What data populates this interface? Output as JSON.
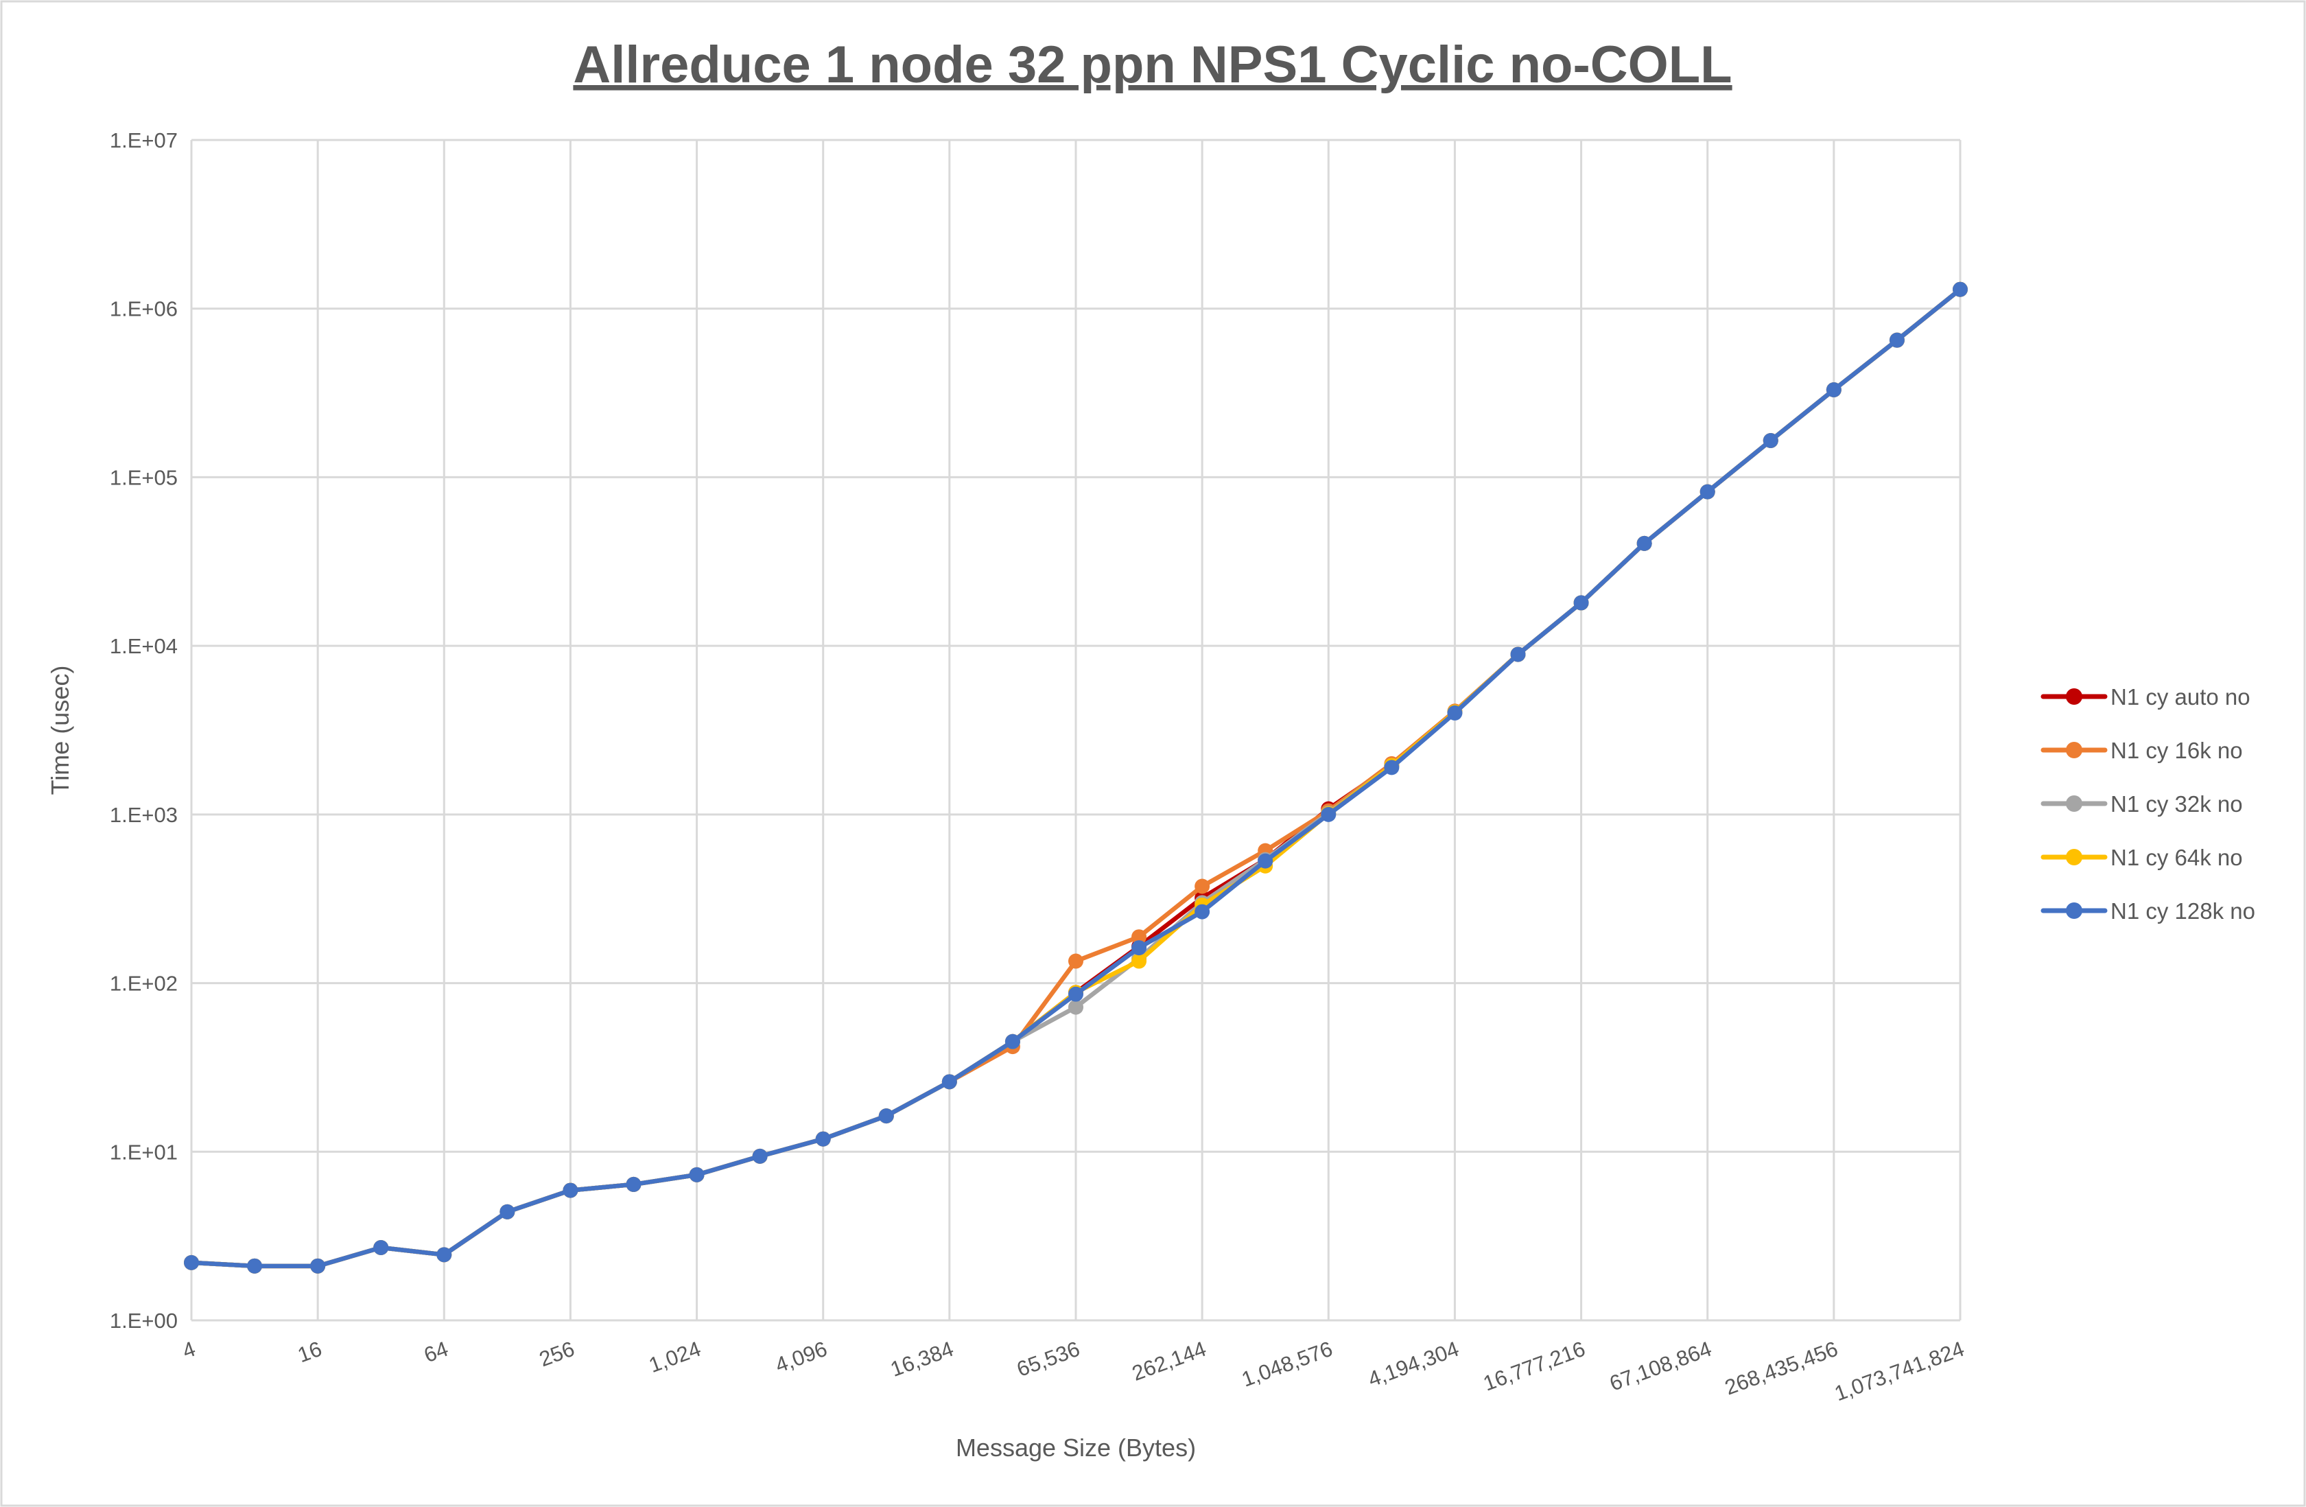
{
  "chart_data": {
    "type": "line",
    "title": "Allreduce 1 node 32 ppn NPS1 Cyclic no-COLL",
    "xlabel": "Message Size (Bytes)",
    "ylabel": "Time (usec)",
    "x_scale": "log2-category",
    "y_scale": "log",
    "ylim": [
      1,
      10000000
    ],
    "y_ticks": [
      "1.E+00",
      "1.E+01",
      "1.E+02",
      "1.E+03",
      "1.E+04",
      "1.E+05",
      "1.E+06",
      "1.E+07"
    ],
    "x": [
      4,
      8,
      16,
      32,
      64,
      128,
      256,
      512,
      1024,
      2048,
      4096,
      8192,
      16384,
      32768,
      65536,
      131072,
      262144,
      524288,
      1048576,
      2097152,
      4194304,
      8388608,
      16777216,
      33554432,
      67108864,
      134217728,
      268435456,
      536870912,
      1073741824
    ],
    "x_tick_labels": [
      "4",
      "16",
      "64",
      "256",
      "1,024",
      "4,096",
      "16,384",
      "65,536",
      "262,144",
      "1,048,576",
      "4,194,304",
      "16,777,216",
      "67,108,864",
      "268,435,456",
      "1,073,741,824"
    ],
    "grid": true,
    "legend_position": "right",
    "series": [
      {
        "name": "N1 cy auto no",
        "color": "#C00000",
        "values": [
          2.2,
          2.1,
          2.1,
          2.7,
          2.45,
          4.4,
          5.9,
          6.4,
          7.3,
          9.4,
          11.9,
          16.3,
          26,
          45,
          88,
          165,
          320,
          540,
          1080,
          1950,
          4050,
          8900,
          18000,
          40500,
          82000,
          165000,
          330000,
          650000,
          1300000
        ]
      },
      {
        "name": "N1 cy 16k no",
        "color": "#ED7D31",
        "values": [
          2.2,
          2.1,
          2.1,
          2.7,
          2.45,
          4.4,
          5.9,
          6.4,
          7.3,
          9.4,
          11.9,
          16.3,
          26,
          42,
          135,
          188,
          375,
          610,
          1050,
          2000,
          4100,
          8900,
          18000,
          40500,
          82000,
          165000,
          330000,
          650000,
          1300000
        ]
      },
      {
        "name": "N1 cy 32k no",
        "color": "#A5A5A5",
        "values": [
          2.2,
          2.1,
          2.1,
          2.7,
          2.45,
          4.4,
          5.9,
          6.4,
          7.3,
          9.4,
          11.9,
          16.3,
          26,
          45,
          72,
          140,
          300,
          540,
          1020,
          1950,
          4050,
          8900,
          18000,
          40500,
          82000,
          165000,
          330000,
          650000,
          1300000
        ]
      },
      {
        "name": "N1 cy 64k no",
        "color": "#FFC000",
        "values": [
          2.2,
          2.1,
          2.1,
          2.7,
          2.45,
          4.4,
          5.9,
          6.4,
          7.3,
          9.4,
          11.9,
          16.3,
          26,
          45,
          88,
          135,
          290,
          495,
          1010,
          1950,
          4050,
          8900,
          18000,
          40500,
          82000,
          165000,
          330000,
          650000,
          1300000
        ]
      },
      {
        "name": "N1 cy 128k no",
        "color": "#4472C4",
        "values": [
          2.2,
          2.1,
          2.1,
          2.7,
          2.45,
          4.4,
          5.9,
          6.4,
          7.3,
          9.4,
          11.9,
          16.3,
          26,
          45,
          86,
          162,
          265,
          530,
          1000,
          1900,
          4000,
          8900,
          18000,
          40500,
          82000,
          165000,
          330000,
          650000,
          1300000
        ]
      }
    ]
  }
}
